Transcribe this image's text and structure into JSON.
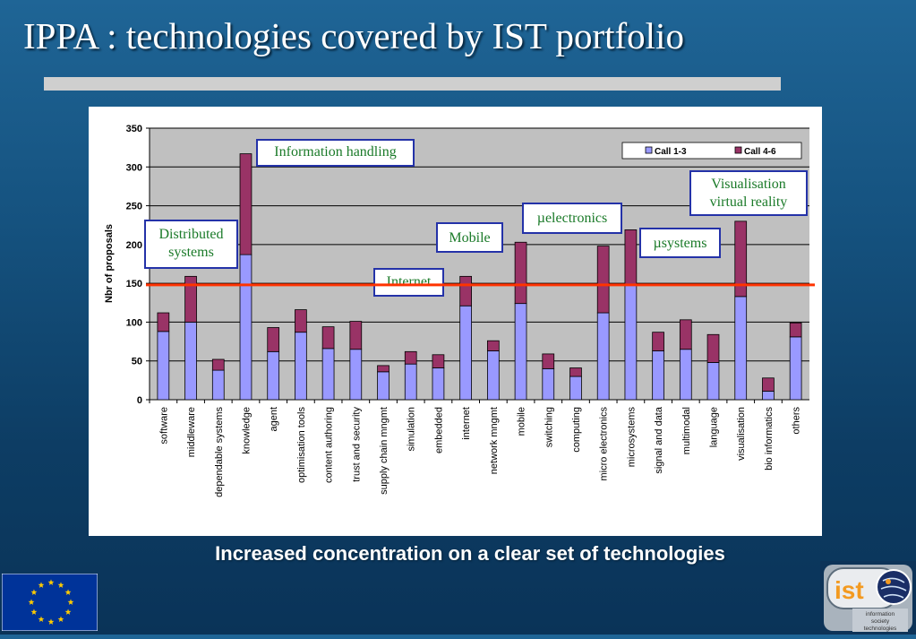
{
  "slide": {
    "title": "IPPA : technologies covered by IST portfolio",
    "caption": "Increased concentration on a clear set of technologies"
  },
  "annotations": [
    {
      "key": "info",
      "text": "Information handling"
    },
    {
      "key": "dist",
      "text": "Distributed systems"
    },
    {
      "key": "mobile",
      "text": "Mobile"
    },
    {
      "key": "uelec",
      "text": "µelectronics"
    },
    {
      "key": "usys",
      "text": "µsystems"
    },
    {
      "key": "vis",
      "text": "Visualisation virtual reality"
    },
    {
      "key": "internet",
      "text": "Internet"
    }
  ],
  "logos": {
    "ist_text": "ist",
    "ist_sub": [
      "information",
      "society",
      "technologies"
    ]
  },
  "colors": {
    "call13": "#9999ff",
    "call46": "#993366",
    "reference_line": "#ff3300",
    "annotation_border": "#2432a8",
    "annotation_text": "#1a7a28",
    "eu_blue": "#003399",
    "eu_star": "#ffcc00"
  },
  "chart_data": {
    "type": "bar",
    "stacked": true,
    "title": "",
    "xlabel": "",
    "ylabel": "Nbr of proposals",
    "ylim": [
      0,
      350
    ],
    "yticks": [
      0,
      50,
      100,
      150,
      200,
      250,
      300,
      350
    ],
    "grid": true,
    "legend_position": "top-right",
    "categories": [
      "software",
      "middleware",
      "dependable systems",
      "knowledge",
      "agent",
      "optimisation tools",
      "content authoring",
      "trust and security",
      "supply chain mngmt",
      "simulation",
      "embedded",
      "internet",
      "network mngmt",
      "mobile",
      "switching",
      "computing",
      "micro electronics",
      "microsystems",
      "signal and data",
      "multimodal",
      "language",
      "visualisation",
      "bio informatics",
      "others"
    ],
    "series": [
      {
        "name": "Call 1-3",
        "values": [
          88,
          100,
          38,
          187,
          62,
          87,
          66,
          65,
          36,
          46,
          41,
          121,
          63,
          124,
          40,
          30,
          112,
          148,
          63,
          65,
          48,
          133,
          11,
          81
        ]
      },
      {
        "name": "Call 4-6",
        "values": [
          24,
          59,
          14,
          130,
          31,
          29,
          28,
          36,
          8,
          16,
          17,
          38,
          13,
          79,
          19,
          11,
          86,
          71,
          24,
          38,
          36,
          97,
          17,
          18
        ]
      }
    ],
    "reference_line": 148
  }
}
